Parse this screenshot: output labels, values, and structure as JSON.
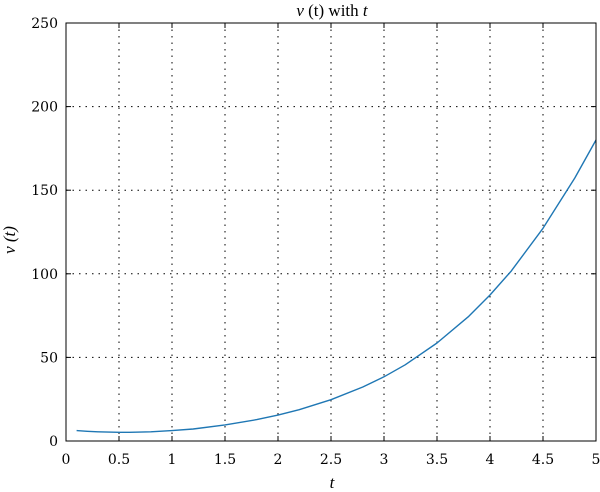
{
  "chart_data": {
    "type": "line",
    "title": "v (t) with t",
    "title_parts": {
      "symbol": "ν",
      "arg": " (t) with ",
      "var": "t"
    },
    "xlabel": "t",
    "ylabel": "ν (t)",
    "xlim": [
      0,
      5
    ],
    "ylim": [
      0,
      250
    ],
    "xticks": [
      0,
      0.5,
      1,
      1.5,
      2,
      2.5,
      3,
      3.5,
      4,
      4.5,
      5
    ],
    "xtick_labels": [
      "0",
      "0.5",
      "1",
      "1.5",
      "2",
      "2.5",
      "3",
      "3.5",
      "4",
      "4.5",
      "5"
    ],
    "yticks": [
      0,
      50,
      100,
      150,
      200,
      250
    ],
    "ytick_labels": [
      "0",
      "50",
      "100",
      "150",
      "200",
      "250"
    ],
    "grid": true,
    "series": [
      {
        "color": "#1f77b4",
        "x": [
          0.1,
          0.2,
          0.3,
          0.4,
          0.5,
          0.6,
          0.8,
          1.0,
          1.2,
          1.5,
          1.8,
          2.0,
          2.2,
          2.5,
          2.8,
          3.0,
          3.2,
          3.5,
          3.8,
          4.0,
          4.2,
          4.5,
          4.8,
          5.0
        ],
        "y": [
          6.2,
          5.8,
          5.5,
          5.3,
          5.2,
          5.2,
          5.5,
          6.2,
          7.2,
          9.6,
          12.8,
          15.5,
          18.7,
          24.7,
          32.3,
          38.4,
          45.6,
          58.6,
          74.6,
          87.3,
          101.6,
          127.2,
          157.3,
          180.0
        ]
      }
    ]
  }
}
